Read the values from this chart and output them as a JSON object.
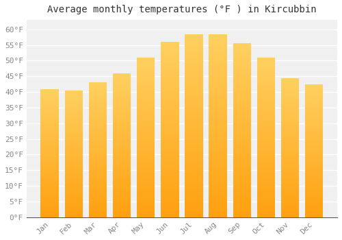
{
  "title": "Average monthly temperatures (°F ) in Kircubbin",
  "months": [
    "Jan",
    "Feb",
    "Mar",
    "Apr",
    "May",
    "Jun",
    "Jul",
    "Aug",
    "Sep",
    "Oct",
    "Nov",
    "Dec"
  ],
  "values": [
    41,
    40.5,
    43,
    46,
    51,
    56,
    58.5,
    58.5,
    55.5,
    51,
    44.5,
    42.5
  ],
  "bar_color_top": "#FFD060",
  "bar_color_bottom": "#FFA010",
  "background_color": "#ffffff",
  "plot_bg_color": "#f0f0f0",
  "grid_color": "#ffffff",
  "yticks": [
    0,
    5,
    10,
    15,
    20,
    25,
    30,
    35,
    40,
    45,
    50,
    55,
    60
  ],
  "ylim": [
    0,
    63
  ],
  "title_fontsize": 10,
  "tick_fontsize": 8,
  "tick_color": "#888888",
  "axis_color": "#555555"
}
